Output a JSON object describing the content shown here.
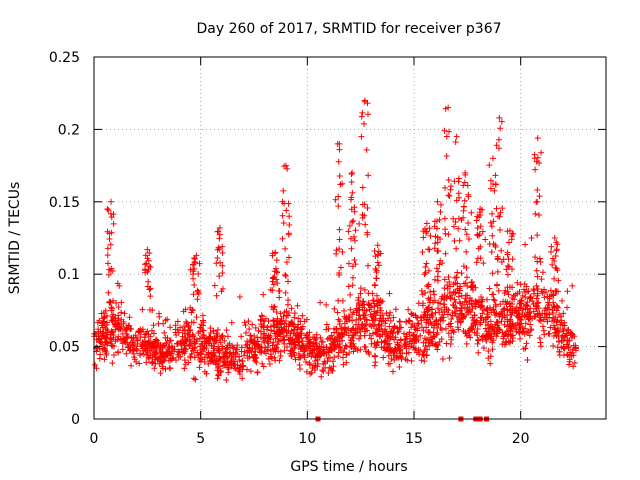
{
  "chart_data": {
    "type": "scatter",
    "title": "Day 260 of 2017, SRMTID for receiver p367",
    "xlabel": "GPS time / hours",
    "ylabel": "SRMTID / TECUs",
    "xlim": [
      0,
      24
    ],
    "ylim": [
      0,
      0.25
    ],
    "xticks": [
      0,
      5,
      10,
      15,
      20
    ],
    "xtick_labels": [
      "0",
      "5",
      "10",
      "15",
      "20"
    ],
    "yticks": [
      0,
      0.05,
      0.1,
      0.15,
      0.2,
      0.25
    ],
    "ytick_labels": [
      "0",
      "0.05",
      "0.1",
      "0.15",
      "0.2",
      "0.25"
    ],
    "grid": true,
    "marker": "+",
    "series_color": "#ff0000",
    "data_span_hours": [
      0,
      22.6
    ],
    "outage_markers_x": [
      10.5,
      17.2,
      17.9,
      18.1,
      18.4
    ],
    "profile": [
      {
        "t": 0.0,
        "base": 0.052,
        "spread": 0.025
      },
      {
        "t": 0.8,
        "base": 0.065,
        "spread": 0.035
      },
      {
        "t": 2.0,
        "base": 0.052,
        "spread": 0.025
      },
      {
        "t": 3.0,
        "base": 0.045,
        "spread": 0.02
      },
      {
        "t": 4.5,
        "base": 0.055,
        "spread": 0.03
      },
      {
        "t": 6.5,
        "base": 0.04,
        "spread": 0.025
      },
      {
        "t": 8.0,
        "base": 0.055,
        "spread": 0.03
      },
      {
        "t": 9.0,
        "base": 0.06,
        "spread": 0.035
      },
      {
        "t": 10.5,
        "base": 0.045,
        "spread": 0.025
      },
      {
        "t": 12.0,
        "base": 0.06,
        "spread": 0.035
      },
      {
        "t": 13.0,
        "base": 0.07,
        "spread": 0.04
      },
      {
        "t": 14.5,
        "base": 0.05,
        "spread": 0.03
      },
      {
        "t": 16.0,
        "base": 0.07,
        "spread": 0.04
      },
      {
        "t": 17.0,
        "base": 0.08,
        "spread": 0.045
      },
      {
        "t": 18.5,
        "base": 0.065,
        "spread": 0.04
      },
      {
        "t": 20.0,
        "base": 0.07,
        "spread": 0.035
      },
      {
        "t": 21.0,
        "base": 0.08,
        "spread": 0.04
      },
      {
        "t": 22.0,
        "base": 0.06,
        "spread": 0.03
      },
      {
        "t": 22.6,
        "base": 0.045,
        "spread": 0.02
      }
    ],
    "spikes": [
      {
        "t": 0.8,
        "peak": 0.15
      },
      {
        "t": 2.5,
        "peak": 0.117
      },
      {
        "t": 4.8,
        "peak": 0.113
      },
      {
        "t": 5.9,
        "peak": 0.132
      },
      {
        "t": 8.5,
        "peak": 0.115
      },
      {
        "t": 9.0,
        "peak": 0.175
      },
      {
        "t": 11.5,
        "peak": 0.19
      },
      {
        "t": 12.1,
        "peak": 0.17
      },
      {
        "t": 12.7,
        "peak": 0.22
      },
      {
        "t": 13.3,
        "peak": 0.12
      },
      {
        "t": 15.6,
        "peak": 0.135
      },
      {
        "t": 16.1,
        "peak": 0.15
      },
      {
        "t": 16.6,
        "peak": 0.215
      },
      {
        "t": 17.0,
        "peak": 0.195
      },
      {
        "t": 17.4,
        "peak": 0.17
      },
      {
        "t": 18.1,
        "peak": 0.145
      },
      {
        "t": 18.7,
        "peak": 0.18
      },
      {
        "t": 19.0,
        "peak": 0.208
      },
      {
        "t": 19.5,
        "peak": 0.13
      },
      {
        "t": 20.8,
        "peak": 0.194
      },
      {
        "t": 21.6,
        "peak": 0.125
      }
    ],
    "point_count": 2200
  }
}
